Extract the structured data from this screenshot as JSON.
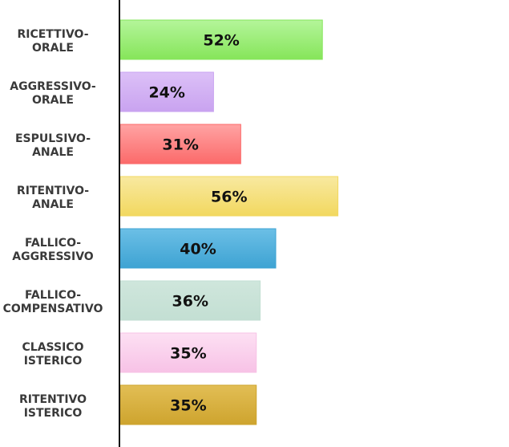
{
  "chart_data": {
    "type": "bar",
    "orientation": "horizontal",
    "categories": [
      "RICETTIVO-ORALE",
      "AGGRESSIVO-ORALE",
      "ESPULSIVO-ANALE",
      "RITENTIVO-ANALE",
      "FALLICO-AGGRESSIVO",
      "FALLICO-COMPENSATIVO",
      "CLASSICO ISTERICO",
      "RITENTIVO ISTERICO"
    ],
    "category_lines": [
      [
        "RICETTIVO-",
        "ORALE"
      ],
      [
        "AGGRESSIVO-",
        "ORALE"
      ],
      [
        "ESPULSIVO-",
        "ANALE"
      ],
      [
        "RITENTIVO-",
        "ANALE"
      ],
      [
        "FALLICO-",
        "AGGRESSIVO"
      ],
      [
        "FALLICO-",
        "COMPENSATIVO"
      ],
      [
        "CLASSICO",
        "ISTERICO"
      ],
      [
        "RITENTIVO",
        "ISTERICO"
      ]
    ],
    "values": [
      52,
      24,
      31,
      56,
      40,
      36,
      35,
      35
    ],
    "value_labels": [
      "52%",
      "24%",
      "31%",
      "56%",
      "40%",
      "36%",
      "35%",
      "35%"
    ],
    "colors": [
      [
        "#b4f59a",
        "#86e55a"
      ],
      [
        "#dcc0f7",
        "#c9a3f0"
      ],
      [
        "#ffa3a3",
        "#fb6a6a"
      ],
      [
        "#f8e9a0",
        "#f2d85f"
      ],
      [
        "#6bbfe6",
        "#3ea3d3"
      ],
      [
        "#cfe6dc",
        "#c3dfd3"
      ],
      [
        "#fde0f3",
        "#f7c2e6"
      ],
      [
        "#e2be55",
        "#cea42e"
      ]
    ],
    "xlim": [
      0,
      100
    ],
    "title": "",
    "xlabel": "",
    "ylabel": "",
    "grid": false,
    "legend": "none"
  }
}
